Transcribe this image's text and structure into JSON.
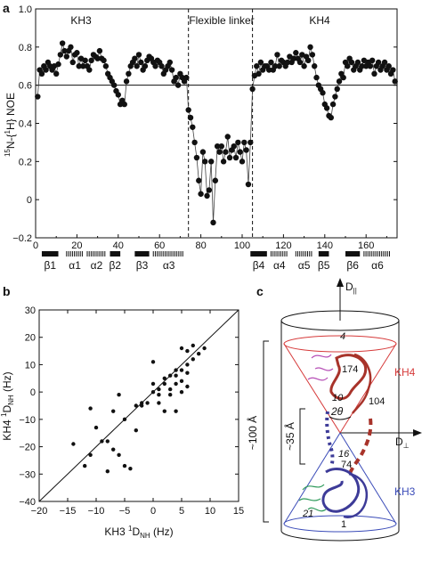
{
  "chart_data": [
    {
      "panel": "a",
      "type": "scatter",
      "ylabel_prefix": "15",
      "ylabel_mid": "N-{",
      "ylabel_sup": "1",
      "ylabel_suffix": "H} NOE",
      "ylim": [
        -0.2,
        1.0
      ],
      "xlim": [
        0,
        175
      ],
      "yticks": [
        "1.0",
        "0.8",
        "0.6",
        "0.4",
        "0.2",
        "0",
        "−0.2"
      ],
      "ytick_values": [
        1.0,
        0.8,
        0.6,
        0.4,
        0.2,
        0,
        -0.2
      ],
      "xtick_values": [
        0,
        20,
        40,
        60,
        80,
        100,
        120,
        140,
        160
      ],
      "xticks": [
        "0",
        "20",
        "40",
        "60",
        "80",
        "100",
        "120",
        "140",
        "160"
      ],
      "region_labels": [
        "KH3",
        "Flexible linker",
        "KH4"
      ],
      "hline": 0.6,
      "vlines": [
        74,
        105
      ],
      "secondary_structure": [
        {
          "label": "β1",
          "type": "strand",
          "start": 3,
          "end": 11
        },
        {
          "label": "α1",
          "type": "helix",
          "start": 15,
          "end": 23
        },
        {
          "label": "α2",
          "type": "helix",
          "start": 25,
          "end": 34
        },
        {
          "label": "β2",
          "type": "strand",
          "start": 36,
          "end": 41
        },
        {
          "label": "β3",
          "type": "strand",
          "start": 48,
          "end": 55
        },
        {
          "label": "α3",
          "type": "helix",
          "start": 57,
          "end": 72
        },
        {
          "label": "β4",
          "type": "strand",
          "start": 104,
          "end": 112
        },
        {
          "label": "α4",
          "type": "helix",
          "start": 114,
          "end": 122
        },
        {
          "label": "α5",
          "type": "helix",
          "start": 126,
          "end": 134
        },
        {
          "label": "β5",
          "type": "strand",
          "start": 137,
          "end": 142
        },
        {
          "label": "β6",
          "type": "strand",
          "start": 150,
          "end": 157
        },
        {
          "label": "α6",
          "type": "helix",
          "start": 159,
          "end": 172
        }
      ],
      "points": [
        [
          1,
          0.54
        ],
        [
          2,
          0.68
        ],
        [
          3,
          0.66
        ],
        [
          4,
          0.7
        ],
        [
          5,
          0.68
        ],
        [
          6,
          0.72
        ],
        [
          7,
          0.7
        ],
        [
          8,
          0.68
        ],
        [
          9,
          0.7
        ],
        [
          10,
          0.66
        ],
        [
          11,
          0.71
        ],
        [
          12,
          0.76
        ],
        [
          13,
          0.82
        ],
        [
          14,
          0.78
        ],
        [
          15,
          0.75
        ],
        [
          16,
          0.78
        ],
        [
          17,
          0.8
        ],
        [
          18,
          0.72
        ],
        [
          19,
          0.76
        ],
        [
          20,
          0.77
        ],
        [
          21,
          0.7
        ],
        [
          22,
          0.74
        ],
        [
          23,
          0.7
        ],
        [
          24,
          0.73
        ],
        [
          25,
          0.7
        ],
        [
          26,
          0.68
        ],
        [
          27,
          0.73
        ],
        [
          28,
          0.76
        ],
        [
          29,
          0.75
        ],
        [
          30,
          0.74
        ],
        [
          31,
          0.78
        ],
        [
          32,
          0.74
        ],
        [
          33,
          0.73
        ],
        [
          34,
          0.7
        ],
        [
          35,
          0.66
        ],
        [
          36,
          0.64
        ],
        [
          37,
          0.62
        ],
        [
          38,
          0.6
        ],
        [
          39,
          0.57
        ],
        [
          40,
          0.55
        ],
        [
          41,
          0.5
        ],
        [
          42,
          0.52
        ],
        [
          43,
          0.5
        ],
        [
          44,
          0.62
        ],
        [
          45,
          0.66
        ],
        [
          46,
          0.7
        ],
        [
          47,
          0.72
        ],
        [
          48,
          0.74
        ],
        [
          49,
          0.7
        ],
        [
          50,
          0.76
        ],
        [
          51,
          0.72
        ],
        [
          52,
          0.68
        ],
        [
          53,
          0.7
        ],
        [
          54,
          0.73
        ],
        [
          55,
          0.75
        ],
        [
          56,
          0.74
        ],
        [
          57,
          0.72
        ],
        [
          58,
          0.7
        ],
        [
          59,
          0.73
        ],
        [
          60,
          0.72
        ],
        [
          61,
          0.7
        ],
        [
          62,
          0.66
        ],
        [
          63,
          0.68
        ],
        [
          64,
          0.7
        ],
        [
          65,
          0.72
        ],
        [
          66,
          0.68
        ],
        [
          67,
          0.62
        ],
        [
          68,
          0.64
        ],
        [
          69,
          0.6
        ],
        [
          70,
          0.66
        ],
        [
          71,
          0.64
        ],
        [
          72,
          0.62
        ],
        [
          73,
          0.64
        ],
        [
          74,
          0.47
        ],
        [
          75,
          0.43
        ],
        [
          76,
          0.38
        ],
        [
          77,
          0.3
        ],
        [
          78,
          0.22
        ],
        [
          79,
          0.1
        ],
        [
          80,
          0.03
        ],
        [
          81,
          0.25
        ],
        [
          82,
          0.2
        ],
        [
          83,
          0.02
        ],
        [
          84,
          0.05
        ],
        [
          85,
          0.2
        ],
        [
          86,
          -0.12
        ],
        [
          87,
          0.1
        ],
        [
          88,
          0.28
        ],
        [
          89,
          0.25
        ],
        [
          90,
          0.28
        ],
        [
          91,
          0.2
        ],
        [
          92,
          0.25
        ],
        [
          93,
          0.33
        ],
        [
          94,
          0.22
        ],
        [
          95,
          0.26
        ],
        [
          96,
          0.28
        ],
        [
          97,
          0.22
        ],
        [
          98,
          0.3
        ],
        [
          99,
          0.25
        ],
        [
          100,
          0.2
        ],
        [
          101,
          0.3
        ],
        [
          102,
          0.26
        ],
        [
          103,
          0.08
        ],
        [
          104,
          0.3
        ],
        [
          105,
          0.58
        ],
        [
          106,
          0.65
        ],
        [
          107,
          0.7
        ],
        [
          108,
          0.66
        ],
        [
          109,
          0.72
        ],
        [
          110,
          0.68
        ],
        [
          111,
          0.7
        ],
        [
          112,
          0.7
        ],
        [
          113,
          0.68
        ],
        [
          114,
          0.72
        ],
        [
          115,
          0.68
        ],
        [
          116,
          0.7
        ],
        [
          117,
          0.76
        ],
        [
          118,
          0.7
        ],
        [
          119,
          0.73
        ],
        [
          120,
          0.72
        ],
        [
          121,
          0.7
        ],
        [
          122,
          0.72
        ],
        [
          123,
          0.75
        ],
        [
          124,
          0.72
        ],
        [
          125,
          0.74
        ],
        [
          126,
          0.77
        ],
        [
          127,
          0.74
        ],
        [
          128,
          0.72
        ],
        [
          129,
          0.76
        ],
        [
          130,
          0.7
        ],
        [
          131,
          0.75
        ],
        [
          132,
          0.73
        ],
        [
          133,
          0.8
        ],
        [
          134,
          0.76
        ],
        [
          135,
          0.7
        ],
        [
          136,
          0.64
        ],
        [
          137,
          0.6
        ],
        [
          138,
          0.58
        ],
        [
          139,
          0.56
        ],
        [
          140,
          0.5
        ],
        [
          141,
          0.48
        ],
        [
          142,
          0.44
        ],
        [
          143,
          0.43
        ],
        [
          144,
          0.5
        ],
        [
          145,
          0.54
        ],
        [
          146,
          0.58
        ],
        [
          147,
          0.62
        ],
        [
          148,
          0.66
        ],
        [
          149,
          0.64
        ],
        [
          150,
          0.72
        ],
        [
          151,
          0.7
        ],
        [
          152,
          0.74
        ],
        [
          153,
          0.72
        ],
        [
          154,
          0.68
        ],
        [
          155,
          0.7
        ],
        [
          156,
          0.72
        ],
        [
          157,
          0.68
        ],
        [
          158,
          0.7
        ],
        [
          159,
          0.73
        ],
        [
          160,
          0.7
        ],
        [
          161,
          0.72
        ],
        [
          162,
          0.7
        ],
        [
          163,
          0.73
        ],
        [
          164,
          0.66
        ],
        [
          165,
          0.7
        ],
        [
          166,
          0.72
        ],
        [
          167,
          0.68
        ],
        [
          168,
          0.7
        ],
        [
          169,
          0.72
        ],
        [
          170,
          0.68
        ],
        [
          171,
          0.7
        ],
        [
          172,
          0.66
        ],
        [
          173,
          0.68
        ],
        [
          174,
          0.62
        ]
      ]
    },
    {
      "panel": "b",
      "type": "scatter",
      "xlabel_prefix": "KH3 ",
      "xlabel_sup": "1",
      "xlabel_main": "D",
      "xlabel_sub": "NH",
      "xlabel_unit": " (Hz)",
      "ylabel_prefix": "KH4 ",
      "ylabel_sup": "1",
      "ylabel_main": "D",
      "ylabel_sub": "NH",
      "ylabel_unit": " (Hz)",
      "xlim": [
        -20,
        15
      ],
      "ylim": [
        -40,
        30
      ],
      "xtick_values": [
        -20,
        -15,
        -10,
        -5,
        0,
        5,
        10,
        15
      ],
      "xticks": [
        "−20",
        "−15",
        "−10",
        "−5",
        "0",
        "5",
        "10",
        "15"
      ],
      "ytick_values": [
        30,
        20,
        10,
        0,
        -10,
        -20,
        -30,
        -40
      ],
      "yticks": [
        "30",
        "20",
        "10",
        "0",
        "−10",
        "−20",
        "−30",
        "−40"
      ],
      "fit_line": [
        [
          -20,
          -40
        ],
        [
          15,
          30
        ]
      ],
      "points": [
        [
          -14,
          -19
        ],
        [
          -12,
          -27
        ],
        [
          -11,
          -23
        ],
        [
          -11,
          -6
        ],
        [
          -10,
          -13
        ],
        [
          -9,
          -18
        ],
        [
          -8,
          -18
        ],
        [
          -8,
          -29
        ],
        [
          -7,
          -21
        ],
        [
          -7,
          -7
        ],
        [
          -6,
          -1
        ],
        [
          -6,
          -23
        ],
        [
          -5,
          -27
        ],
        [
          -5,
          -10
        ],
        [
          -4,
          -28
        ],
        [
          -3,
          -14
        ],
        [
          -3,
          -5
        ],
        [
          -2,
          -5
        ],
        [
          -2,
          -4
        ],
        [
          -1,
          -4
        ],
        [
          0,
          0
        ],
        [
          0,
          3
        ],
        [
          0,
          11
        ],
        [
          1,
          -1
        ],
        [
          1,
          -4
        ],
        [
          1,
          1
        ],
        [
          2,
          3
        ],
        [
          2,
          -7
        ],
        [
          3,
          -1
        ],
        [
          3,
          1
        ],
        [
          3,
          6
        ],
        [
          4,
          3
        ],
        [
          4,
          8
        ],
        [
          4,
          -7
        ],
        [
          5,
          8
        ],
        [
          5,
          16
        ],
        [
          5,
          0
        ],
        [
          6,
          10
        ],
        [
          6,
          7
        ],
        [
          6,
          2
        ],
        [
          6,
          15
        ],
        [
          7,
          17
        ],
        [
          7,
          12
        ],
        [
          8,
          14
        ],
        [
          9,
          16
        ],
        [
          5,
          4
        ],
        [
          4,
          6
        ],
        [
          2,
          5
        ]
      ]
    }
  ],
  "panel_labels": [
    "a",
    "b",
    "c"
  ],
  "structure_panel": {
    "axis_parallel": "D",
    "axis_parallel_sub": "||",
    "axis_perp": "D",
    "axis_perp_sub": "⊥",
    "length_label": "~100 Å",
    "separation_label": "~35 Å",
    "angle_label": "2θ",
    "domain_top": "KH4",
    "domain_bottom": "KH3",
    "residue_labels": [
      "4",
      "174",
      "104",
      "10",
      "16",
      "74",
      "21",
      "1"
    ],
    "colors": {
      "kh4_cone": "#d63a3a",
      "kh3_cone": "#3a4bb8",
      "kh4_chain": "#a8332a",
      "kh3_chain": "#3d3b98",
      "magenta": "#b64fb6",
      "green": "#2e9a5a",
      "linker": "#3d3b98"
    }
  }
}
